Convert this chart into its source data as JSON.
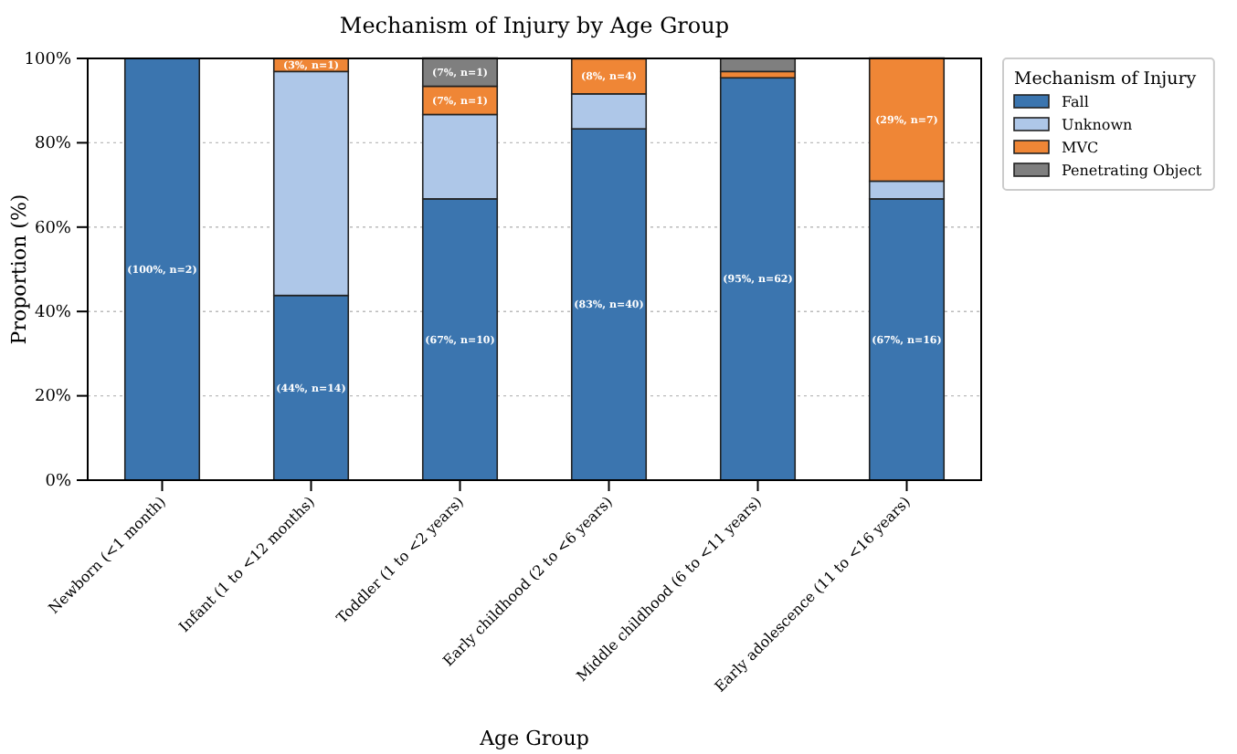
{
  "chart_data": {
    "type": "bar",
    "title": "Mechanism of Injury by Age Group",
    "xlabel": "Age Group",
    "ylabel": "Proportion (%)",
    "legend_title": "Mechanism of Injury",
    "categories": [
      "Newborn (<1 month)",
      "Infant (1 to <12 months)",
      "Toddler (1 to <2 years)",
      "Early childhood (2 to <6 years)",
      "Middle childhood (6 to <11 years)",
      "Early adolescence (11 to <16 years)"
    ],
    "stacked": true,
    "series": [
      {
        "name": "Fall",
        "color": "#3b75af",
        "values": [
          100,
          43.8,
          66.7,
          83.3,
          95.4,
          66.7
        ],
        "value_labels": [
          "(100%, n=2)",
          "(44%, n=14)",
          "(67%, n=10)",
          "(83%, n=40)",
          "(95%, n=62)",
          "(67%, n=16)"
        ]
      },
      {
        "name": "Unknown",
        "color": "#aec7e8",
        "values": [
          0,
          53.1,
          20,
          8.3,
          0,
          4.2
        ],
        "value_labels": [
          null,
          null,
          null,
          null,
          null,
          null
        ]
      },
      {
        "name": "MVC",
        "color": "#ef8636",
        "values": [
          0,
          3.1,
          6.7,
          8.3,
          1.5,
          29.2
        ],
        "value_labels": [
          null,
          "(3%, n=1)",
          "(7%, n=1)",
          "(8%, n=4)",
          null,
          "(29%, n=7)"
        ]
      },
      {
        "name": "Penetrating Object",
        "color": "#7f7f7f",
        "values": [
          0,
          0,
          6.7,
          0,
          3.1,
          0
        ],
        "value_labels": [
          null,
          null,
          "(7%, n=1)",
          null,
          null,
          null
        ]
      }
    ],
    "ylim": [
      0,
      100
    ],
    "yticks": [
      {
        "value": 0,
        "label": "0%"
      },
      {
        "value": 20,
        "label": "20%"
      },
      {
        "value": 40,
        "label": "40%"
      },
      {
        "value": 60,
        "label": "60%"
      },
      {
        "value": 80,
        "label": "80%"
      },
      {
        "value": 100,
        "label": "100%"
      }
    ],
    "grid": "y",
    "legend": "top right"
  }
}
